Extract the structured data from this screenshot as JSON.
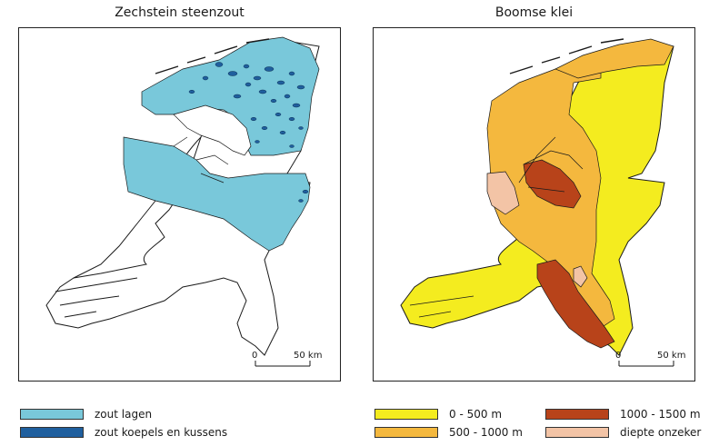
{
  "left_map": {
    "title": "Zechstein steenzout",
    "scale": {
      "zero": "0",
      "distance": "50 km"
    },
    "legend": [
      {
        "label": "zout lagen",
        "color": "#79c8da"
      },
      {
        "label": "zout koepels en kussens",
        "color": "#1f5f9e"
      }
    ]
  },
  "right_map": {
    "title": "Boomse klei",
    "scale": {
      "zero": "0",
      "distance": "50 km"
    },
    "legend": [
      {
        "label": "0 - 500 m",
        "color": "#f4ec1f"
      },
      {
        "label": "500 - 1000 m",
        "color": "#f4b83e"
      },
      {
        "label": "1000 - 1500 m",
        "color": "#b8431a"
      },
      {
        "label": "diepte onzeker",
        "color": "#f3c4a6"
      }
    ]
  },
  "colors": {
    "outline": "#1a1a1a",
    "frame": "#222222"
  }
}
